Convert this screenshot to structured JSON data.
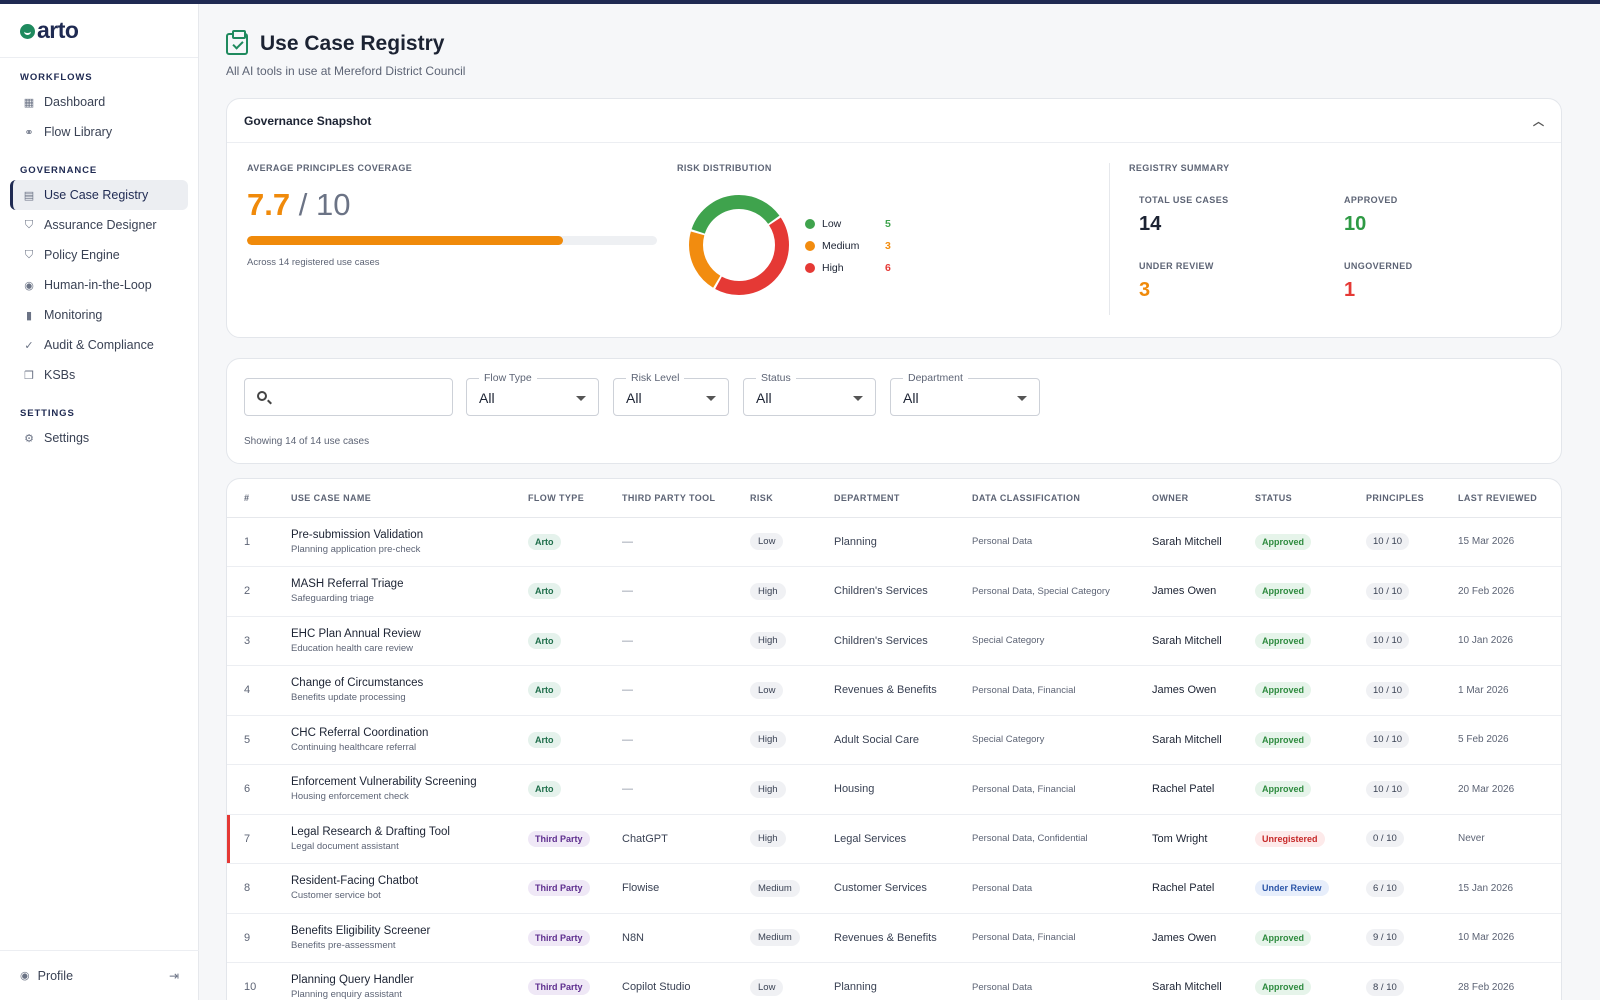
{
  "brand": {
    "name": "arto"
  },
  "sidebar": {
    "sections": [
      {
        "title": "WORKFLOWS",
        "items": [
          {
            "label": "Dashboard",
            "icon": "grid-icon"
          },
          {
            "label": "Flow Library",
            "icon": "flow-icon"
          }
        ]
      },
      {
        "title": "GOVERNANCE",
        "items": [
          {
            "label": "Use Case Registry",
            "icon": "clipboard-icon",
            "active": true
          },
          {
            "label": "Assurance Designer",
            "icon": "shield-check-icon"
          },
          {
            "label": "Policy Engine",
            "icon": "shield-icon"
          },
          {
            "label": "Human-in-the-Loop",
            "icon": "person-icon"
          },
          {
            "label": "Monitoring",
            "icon": "bar-chart-icon"
          },
          {
            "label": "Audit & Compliance",
            "icon": "check-circle-icon"
          },
          {
            "label": "KSBs",
            "icon": "stack-icon"
          }
        ]
      },
      {
        "title": "SETTINGS",
        "items": [
          {
            "label": "Settings",
            "icon": "gear-icon"
          }
        ]
      }
    ],
    "profile": {
      "label": "Profile"
    }
  },
  "page": {
    "title": "Use Case Registry",
    "subtitle": "All AI tools in use at Mereford District Council"
  },
  "snapshot": {
    "title": "Governance Snapshot",
    "coverage": {
      "label": "AVERAGE PRINCIPLES COVERAGE",
      "value": "7.7",
      "of": "/ 10",
      "fraction": 0.77,
      "note": "Across 14 registered use cases"
    },
    "risk": {
      "label": "RISK DISTRIBUTION",
      "items": [
        {
          "name": "Low",
          "count": 5,
          "color": "#3fa34d"
        },
        {
          "name": "Medium",
          "count": 3,
          "color": "#f28c0f"
        },
        {
          "name": "High",
          "count": 6,
          "color": "#e53935"
        }
      ]
    },
    "summary": {
      "label": "REGISTRY SUMMARY",
      "total": {
        "label": "TOTAL USE CASES",
        "value": "14"
      },
      "approved": {
        "label": "APPROVED",
        "value": "10"
      },
      "review": {
        "label": "UNDER REVIEW",
        "value": "3"
      },
      "ungoverned": {
        "label": "UNGOVERNED",
        "value": "1"
      }
    }
  },
  "filters": {
    "search_value": "",
    "flow_type": {
      "label": "Flow Type",
      "value": "All"
    },
    "risk_level": {
      "label": "Risk Level",
      "value": "All"
    },
    "status": {
      "label": "Status",
      "value": "All"
    },
    "department": {
      "label": "Department",
      "value": "All"
    },
    "showing": "Showing 14 of 14 use cases"
  },
  "table": {
    "headers": [
      "#",
      "USE CASE NAME",
      "FLOW TYPE",
      "THIRD PARTY TOOL",
      "RISK",
      "DEPARTMENT",
      "DATA CLASSIFICATION",
      "OWNER",
      "STATUS",
      "PRINCIPLES",
      "LAST REVIEWED"
    ],
    "rows": [
      {
        "n": "1",
        "name": "Pre-submission Validation",
        "sub": "Planning application pre-check",
        "flow": "Arto",
        "tool": "—",
        "risk": "Low",
        "dept": "Planning",
        "data": "Personal Data",
        "owner": "Sarah Mitchell",
        "status": "Approved",
        "principles": "10 / 10",
        "reviewed": "15 Mar 2026"
      },
      {
        "n": "2",
        "name": "MASH Referral Triage",
        "sub": "Safeguarding triage",
        "flow": "Arto",
        "tool": "—",
        "risk": "High",
        "dept": "Children's Services",
        "data": "Personal Data, Special Category",
        "owner": "James Owen",
        "status": "Approved",
        "principles": "10 / 10",
        "reviewed": "20 Feb 2026"
      },
      {
        "n": "3",
        "name": "EHC Plan Annual Review",
        "sub": "Education health care review",
        "flow": "Arto",
        "tool": "—",
        "risk": "High",
        "dept": "Children's Services",
        "data": "Special Category",
        "owner": "Sarah Mitchell",
        "status": "Approved",
        "principles": "10 / 10",
        "reviewed": "10 Jan 2026"
      },
      {
        "n": "4",
        "name": "Change of Circumstances",
        "sub": "Benefits update processing",
        "flow": "Arto",
        "tool": "—",
        "risk": "Low",
        "dept": "Revenues & Benefits",
        "data": "Personal Data, Financial",
        "owner": "James Owen",
        "status": "Approved",
        "principles": "10 / 10",
        "reviewed": "1 Mar 2026"
      },
      {
        "n": "5",
        "name": "CHC Referral Coordination",
        "sub": "Continuing healthcare referral",
        "flow": "Arto",
        "tool": "—",
        "risk": "High",
        "dept": "Adult Social Care",
        "data": "Special Category",
        "owner": "Sarah Mitchell",
        "status": "Approved",
        "principles": "10 / 10",
        "reviewed": "5 Feb 2026"
      },
      {
        "n": "6",
        "name": "Enforcement Vulnerability Screening",
        "sub": "Housing enforcement check",
        "flow": "Arto",
        "tool": "—",
        "risk": "High",
        "dept": "Housing",
        "data": "Personal Data, Financial",
        "owner": "Rachel Patel",
        "status": "Approved",
        "principles": "10 / 10",
        "reviewed": "20 Mar 2026"
      },
      {
        "n": "7",
        "name": "Legal Research & Drafting Tool",
        "sub": "Legal document assistant",
        "flow": "Third Party",
        "tool": "ChatGPT",
        "risk": "High",
        "dept": "Legal Services",
        "data": "Personal Data, Confidential",
        "owner": "Tom Wright",
        "status": "Unregistered",
        "principles": "0 / 10",
        "reviewed": "Never",
        "flag": true
      },
      {
        "n": "8",
        "name": "Resident-Facing Chatbot",
        "sub": "Customer service bot",
        "flow": "Third Party",
        "tool": "Flowise",
        "risk": "Medium",
        "dept": "Customer Services",
        "data": "Personal Data",
        "owner": "Rachel Patel",
        "status": "Under Review",
        "principles": "6 / 10",
        "reviewed": "15 Jan 2026"
      },
      {
        "n": "9",
        "name": "Benefits Eligibility Screener",
        "sub": "Benefits pre-assessment",
        "flow": "Third Party",
        "tool": "N8N",
        "risk": "Medium",
        "dept": "Revenues & Benefits",
        "data": "Personal Data, Financial",
        "owner": "James Owen",
        "status": "Approved",
        "principles": "9 / 10",
        "reviewed": "10 Mar 2026"
      },
      {
        "n": "10",
        "name": "Planning Query Handler",
        "sub": "Planning enquiry assistant",
        "flow": "Third Party",
        "tool": "Copilot Studio",
        "risk": "Low",
        "dept": "Planning",
        "data": "Personal Data",
        "owner": "Sarah Mitchell",
        "status": "Approved",
        "principles": "8 / 10",
        "reviewed": "28 Feb 2026"
      }
    ]
  },
  "colors": {
    "accent_orange": "#f08a0a",
    "approved_green": "#2e8b3f",
    "ungoverned_red": "#e53935",
    "navy": "#1f2a52"
  }
}
